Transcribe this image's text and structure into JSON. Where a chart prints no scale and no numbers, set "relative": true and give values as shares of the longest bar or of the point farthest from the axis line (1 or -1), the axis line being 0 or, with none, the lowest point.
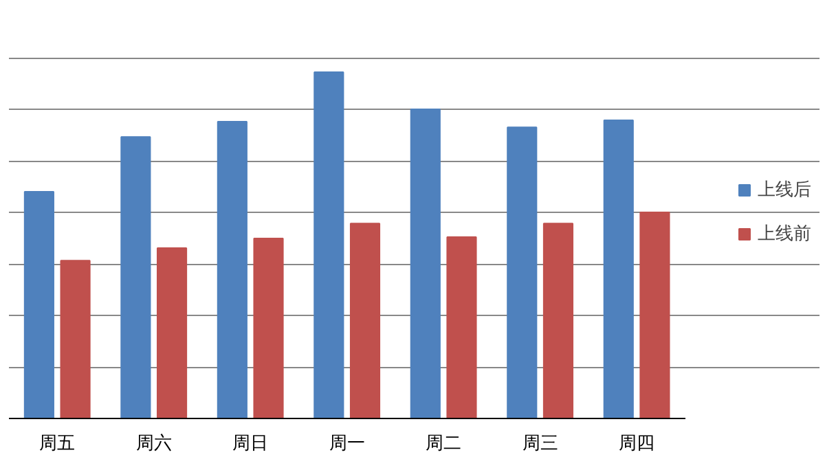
{
  "chart_data": {
    "type": "bar",
    "relative": true,
    "categories": [
      "周五",
      "周六",
      "周日",
      "周一",
      "周二",
      "周三",
      "周四"
    ],
    "series": [
      {
        "name": "上线后",
        "color": "#4f81bd",
        "values": [
          0.655,
          0.813,
          0.857,
          1,
          0.893,
          0.841,
          0.861
        ]
      },
      {
        "name": "上线前",
        "color": "#c0504d",
        "values": [
          0.456,
          0.492,
          0.52,
          0.563,
          0.524,
          0.563,
          0.595
        ]
      }
    ],
    "grid": "y",
    "legend": "right"
  }
}
